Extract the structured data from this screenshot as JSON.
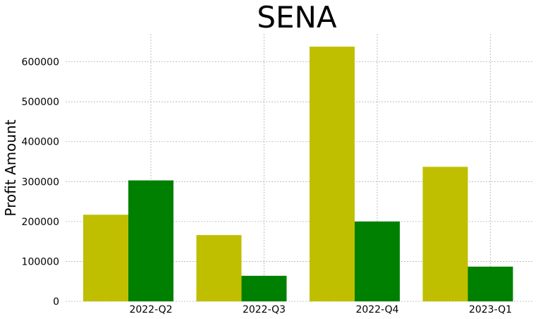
{
  "chart_data": {
    "type": "bar",
    "title": "SENA",
    "xlabel": "",
    "ylabel": "Profit Amount",
    "categories": [
      "2022-Q2",
      "2022-Q3",
      "2022-Q4",
      "2023-Q1"
    ],
    "series": [
      {
        "values": [
          217000,
          166000,
          638000,
          337000
        ],
        "color": "#bfbf00"
      },
      {
        "values": [
          303000,
          64000,
          200000,
          87000
        ],
        "color": "#008000"
      }
    ],
    "yticks": [
      0,
      100000,
      200000,
      300000,
      400000,
      500000,
      600000
    ],
    "ylim": [
      0,
      670000
    ],
    "grid": true,
    "legend": "none"
  }
}
